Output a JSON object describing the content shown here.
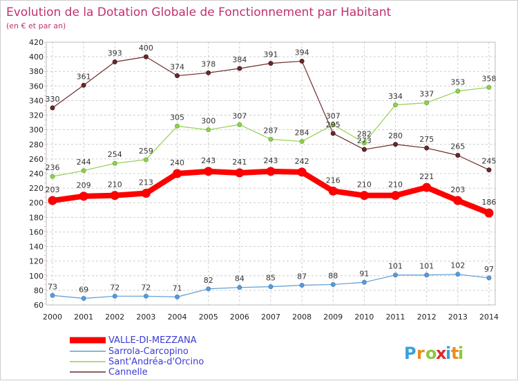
{
  "chart_data": {
    "type": "line",
    "title": "Evolution de la Dotation Globale de Fonctionnement par Habitant",
    "subtitle": "(en € et par an)",
    "x": [
      "2000",
      "2001",
      "2002",
      "2003",
      "2004",
      "2005",
      "2006",
      "2007",
      "2008",
      "2009",
      "2010",
      "2011",
      "2012",
      "2013",
      "2014"
    ],
    "ylim": [
      60,
      420
    ],
    "yticks": [
      60,
      80,
      100,
      120,
      140,
      160,
      180,
      200,
      220,
      240,
      260,
      280,
      300,
      320,
      340,
      360,
      380,
      400,
      420
    ],
    "grid": true,
    "legend_position": "bottom-left",
    "series": [
      {
        "name": "VALLE-DI-MEZZANA",
        "color": "#ff0000",
        "values": [
          203,
          209,
          210,
          213,
          240,
          243,
          241,
          243,
          242,
          216,
          210,
          210,
          221,
          203,
          186
        ],
        "labels": [
          "203",
          "209",
          "210",
          "213",
          "240",
          "243",
          "241",
          "243",
          "242",
          "216",
          "210",
          "210",
          "221",
          "203",
          "186"
        ]
      },
      {
        "name": "Sarrola-Carcopino",
        "color": "#5b9bd5",
        "values": [
          73,
          69,
          72,
          72,
          71,
          82,
          84,
          85,
          87,
          88,
          91,
          101,
          101,
          102,
          97
        ],
        "labels": [
          "73",
          "69",
          "72",
          "72",
          "71",
          "82",
          "84",
          "85",
          "87",
          "88",
          "91",
          "101",
          "101",
          "102",
          "97"
        ]
      },
      {
        "name": "Sant'Andréa-d'Orcino",
        "color": "#92d050",
        "values": [
          236,
          244,
          254,
          259,
          305,
          300,
          307,
          287,
          284,
          307,
          282,
          334,
          337,
          353,
          358
        ],
        "labels": [
          "236",
          "244",
          "254",
          "259",
          "305",
          "300",
          "307",
          "287",
          "284",
          "307",
          "282",
          "334",
          "337",
          "353",
          "358"
        ]
      },
      {
        "name": "Cannelle",
        "color": "#6b2a2a",
        "values": [
          330,
          361,
          393,
          400,
          374,
          378,
          384,
          391,
          394,
          295,
          273,
          280,
          275,
          265,
          245
        ],
        "labels": [
          "330",
          "361",
          "393",
          "400",
          "374",
          "378",
          "384",
          "391",
          "394",
          "295",
          "273",
          "280",
          "275",
          "265",
          "245"
        ]
      }
    ]
  },
  "brand": {
    "letters": [
      "P",
      "r",
      "o",
      "x",
      "i",
      "t",
      "i"
    ],
    "colors": [
      "#3aa0dc",
      "#f08a1c",
      "#8cc63f",
      "#e0282e",
      "#3aa0dc",
      "#f08a1c",
      "#8cc63f"
    ]
  }
}
